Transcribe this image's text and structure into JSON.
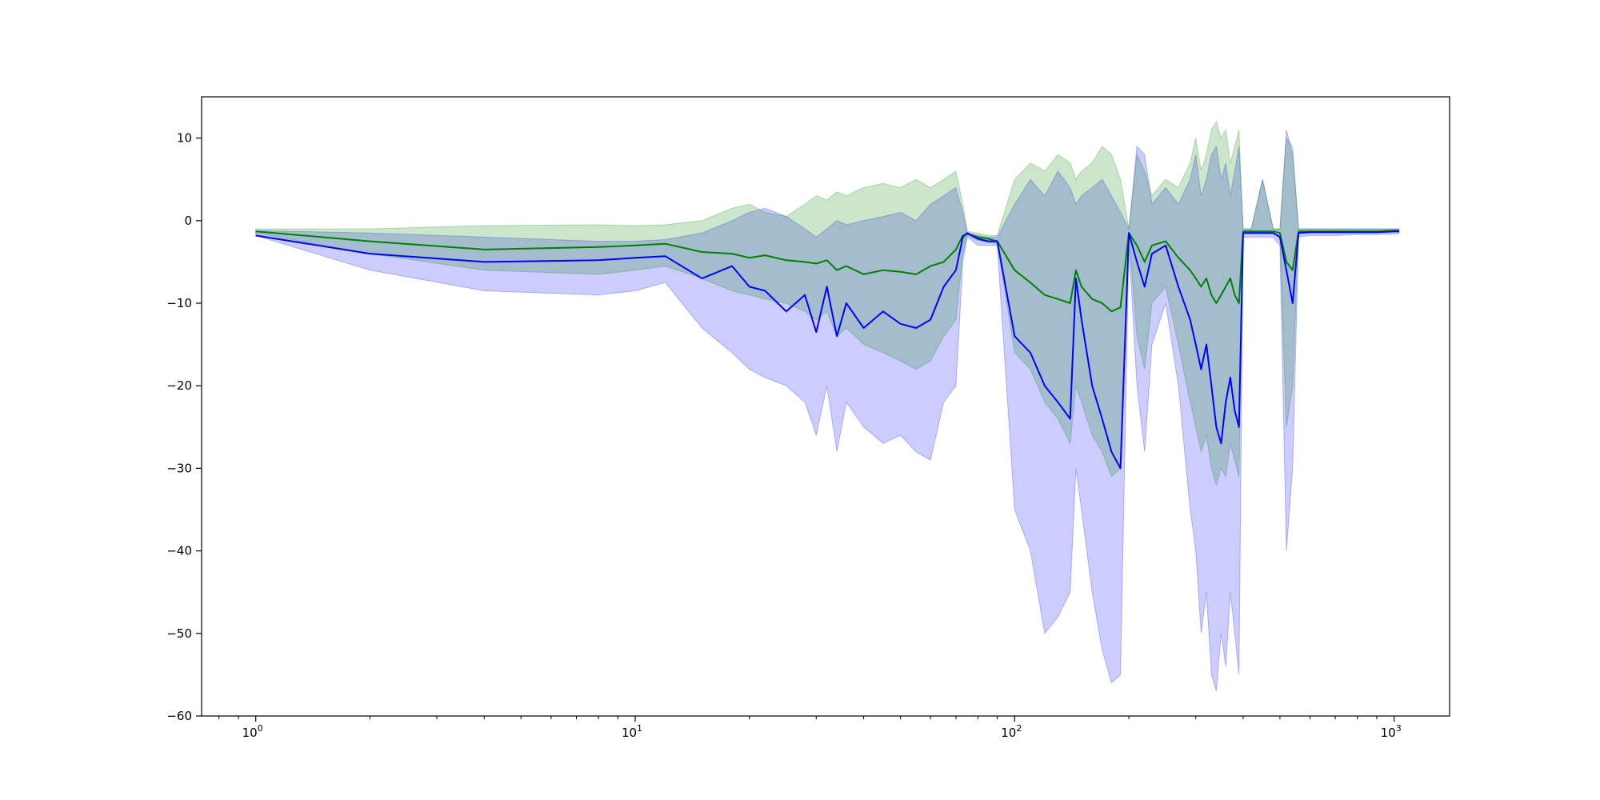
{
  "chart_data": {
    "type": "line",
    "title": "",
    "xlabel": "",
    "ylabel": "",
    "xscale": "log",
    "xlim": [
      0.72,
      1400
    ],
    "ylim": [
      -60,
      15
    ],
    "grid": false,
    "legend": "none",
    "x_major_ticks": [
      1,
      10,
      100,
      1000
    ],
    "x_tick_labels": [
      {
        "base": "10",
        "exp": "0"
      },
      {
        "base": "10",
        "exp": "1"
      },
      {
        "base": "10",
        "exp": "2"
      },
      {
        "base": "10",
        "exp": "3"
      }
    ],
    "y_ticks": [
      10,
      0,
      -10,
      -20,
      -30,
      -40,
      -50,
      -60
    ],
    "y_tick_labels": [
      "10",
      "0",
      "−10",
      "−20",
      "−30",
      "−40",
      "−50",
      "−60"
    ],
    "series": [
      {
        "color": "#0000ff",
        "band_color": "#0000ff",
        "band_opacity": 0.2,
        "x": [
          1,
          2,
          4,
          8,
          10,
          12,
          15,
          18,
          20,
          22,
          25,
          28,
          30,
          32,
          34,
          36,
          40,
          45,
          50,
          55,
          60,
          65,
          70,
          73,
          75,
          80,
          85,
          90,
          100,
          110,
          120,
          130,
          140,
          145,
          150,
          160,
          170,
          180,
          190,
          200,
          210,
          220,
          230,
          250,
          270,
          290,
          300,
          310,
          320,
          330,
          340,
          350,
          360,
          370,
          380,
          390,
          400,
          420,
          450,
          480,
          500,
          520,
          540,
          560,
          600,
          700,
          800,
          900,
          1000,
          1030
        ],
        "y": [
          -1.8,
          -4,
          -5,
          -4.8,
          -4.5,
          -4.3,
          -7,
          -5.5,
          -8,
          -8.5,
          -11,
          -9,
          -13.5,
          -8,
          -14,
          -10,
          -13,
          -11,
          -12.5,
          -13,
          -12,
          -8,
          -6,
          -2,
          -1.5,
          -2.2,
          -2.5,
          -2.5,
          -14,
          -16,
          -20,
          -22,
          -24,
          -7,
          -12,
          -20,
          -24,
          -28,
          -30,
          -1.5,
          -5,
          -8,
          -4,
          -3,
          -8,
          -12,
          -15,
          -18,
          -15,
          -20,
          -25,
          -27,
          -22,
          -19,
          -23,
          -25,
          -1.5,
          -1.5,
          -1.5,
          -1.5,
          -2,
          -6,
          -10,
          -1.5,
          -1.4,
          -1.4,
          -1.4,
          -1.4,
          -1.3,
          -1.3
        ],
        "upper": [
          -1.2,
          -1.5,
          -2,
          -2.5,
          -2.5,
          -2.3,
          -1.5,
          0,
          1,
          1.5,
          0.5,
          -1,
          -2,
          -1,
          0,
          -0.5,
          0,
          0.5,
          1,
          0,
          2,
          3,
          4,
          1,
          -1.5,
          -1.8,
          -2,
          -2,
          2,
          5,
          3,
          6,
          4,
          2,
          3,
          4,
          5,
          3,
          1,
          -1,
          9,
          8,
          2,
          4,
          2,
          5,
          8,
          3,
          5,
          8,
          9,
          5,
          7,
          3,
          6,
          9,
          -1,
          -1,
          5,
          -1,
          -1,
          11,
          8,
          -1,
          -1,
          -1,
          -1,
          -1,
          -1,
          -1
        ],
        "lower": [
          -1.8,
          -6,
          -8.5,
          -9,
          -8.5,
          -7.5,
          -13,
          -16,
          -18,
          -19,
          -20,
          -22,
          -26,
          -20,
          -28,
          -22,
          -25,
          -27,
          -26,
          -28,
          -29,
          -22,
          -20,
          -5,
          -2,
          -3,
          -3,
          -3,
          -35,
          -40,
          -50,
          -48,
          -45,
          -30,
          -35,
          -45,
          -52,
          -56,
          -55,
          -3,
          -20,
          -28,
          -15,
          -10,
          -20,
          -35,
          -40,
          -50,
          -45,
          -55,
          -57,
          -50,
          -54,
          -45,
          -50,
          -55,
          -2,
          -2,
          -2,
          -2,
          -3,
          -40,
          -30,
          -2,
          -1.8,
          -1.8,
          -1.7,
          -1.7,
          -1.6,
          -1.6
        ]
      },
      {
        "color": "#008000",
        "band_color": "#008000",
        "band_opacity": 0.2,
        "x": [
          1,
          2,
          4,
          8,
          10,
          12,
          15,
          18,
          20,
          22,
          25,
          28,
          30,
          32,
          34,
          36,
          40,
          45,
          50,
          55,
          60,
          65,
          70,
          73,
          75,
          80,
          85,
          90,
          100,
          110,
          120,
          130,
          140,
          145,
          150,
          160,
          170,
          180,
          190,
          200,
          210,
          220,
          230,
          250,
          270,
          290,
          300,
          310,
          320,
          330,
          340,
          350,
          360,
          370,
          380,
          390,
          400,
          420,
          450,
          480,
          500,
          520,
          540,
          560,
          600,
          700,
          800,
          900,
          1000,
          1030
        ],
        "y": [
          -1.3,
          -2.5,
          -3.5,
          -3.2,
          -3,
          -2.8,
          -3.8,
          -4,
          -4.5,
          -4.2,
          -4.8,
          -5,
          -5.2,
          -4.8,
          -6,
          -5.5,
          -6.5,
          -6,
          -6.2,
          -6.5,
          -5.5,
          -5,
          -3.5,
          -1.8,
          -1.6,
          -2,
          -2.2,
          -2.5,
          -6,
          -7.5,
          -9,
          -9.5,
          -10,
          -6,
          -8,
          -9.5,
          -10,
          -11,
          -10.5,
          -1.5,
          -3,
          -5,
          -3,
          -2.5,
          -4.5,
          -6,
          -7,
          -8,
          -7,
          -9,
          -10,
          -9,
          -8,
          -7,
          -9,
          -10,
          -1.3,
          -1.3,
          -1.3,
          -1.3,
          -1.5,
          -5,
          -6,
          -1.3,
          -1.3,
          -1.3,
          -1.3,
          -1.3,
          -1.2,
          -1.2
        ],
        "upper": [
          -1,
          -1,
          -0.6,
          -0.5,
          -0.6,
          -0.5,
          0,
          1.5,
          2,
          1,
          0.5,
          2,
          3,
          2.5,
          3.5,
          3,
          4,
          4.5,
          4,
          5,
          4,
          5,
          6,
          2,
          -1.3,
          -1.5,
          -1.8,
          -1.8,
          5,
          7,
          6,
          8,
          7,
          5,
          6,
          7,
          9,
          8,
          5,
          -1,
          8,
          6,
          3,
          5,
          4,
          7,
          10,
          6,
          8,
          11,
          12,
          10,
          11,
          7,
          9,
          11,
          -1,
          -1,
          5,
          -1,
          -1,
          10,
          9,
          -1,
          -1,
          -1,
          -1,
          -1,
          -1,
          -1
        ],
        "lower": [
          -1.5,
          -4,
          -6,
          -6.5,
          -6,
          -5.5,
          -7,
          -8.5,
          -9,
          -9.5,
          -10,
          -11,
          -12,
          -11,
          -14,
          -13,
          -15,
          -16,
          -17,
          -18,
          -17,
          -14,
          -12,
          -4,
          -1.8,
          -2.4,
          -2.6,
          -2.8,
          -16,
          -18,
          -22,
          -24,
          -27,
          -20,
          -22,
          -26,
          -28,
          -31,
          -30,
          -2,
          -14,
          -18,
          -10,
          -8,
          -15,
          -22,
          -25,
          -28,
          -26,
          -30,
          -32,
          -30,
          -31,
          -27,
          -29,
          -31,
          -1.6,
          -1.6,
          -1.6,
          -1.6,
          -1.8,
          -25,
          -20,
          -1.6,
          -1.5,
          -1.5,
          -1.5,
          -1.5,
          -1.4,
          -1.4
        ]
      }
    ]
  }
}
